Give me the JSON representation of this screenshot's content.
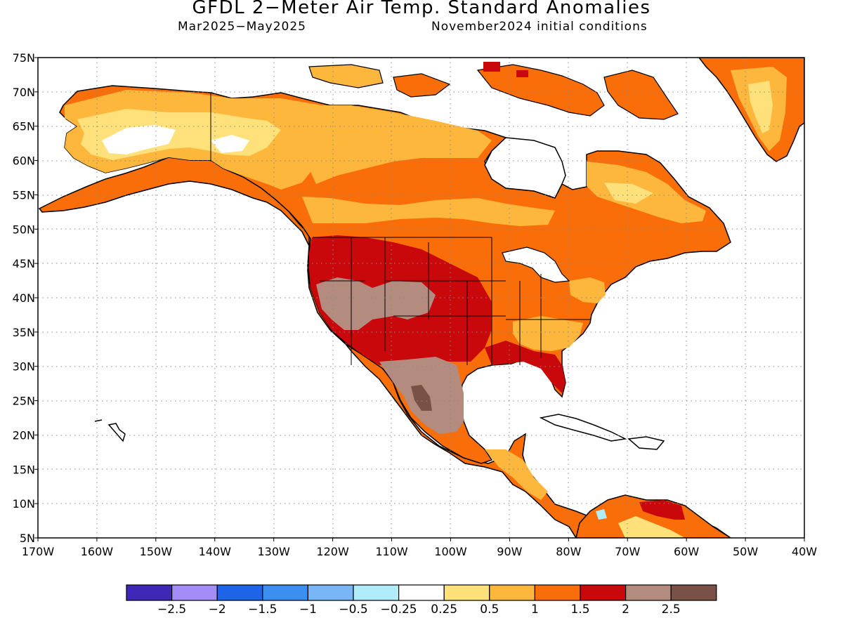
{
  "title": "GFDL 2−Meter Air Temp. Standard Anomalies",
  "subtitle_left": "Mar2025−May2025",
  "subtitle_right": "November2024 initial conditions",
  "map": {
    "lat_labels": [
      "75N",
      "70N",
      "65N",
      "60N",
      "55N",
      "50N",
      "45N",
      "40N",
      "35N",
      "30N",
      "25N",
      "20N",
      "15N",
      "10N",
      "5N"
    ],
    "lon_labels": [
      "170W",
      "160W",
      "150W",
      "140W",
      "130W",
      "120W",
      "110W",
      "100W",
      "90W",
      "80W",
      "70W",
      "60W",
      "50W",
      "40W"
    ],
    "grid": true
  },
  "colorbar": {
    "colors": [
      "#3f28b8",
      "#a28cf5",
      "#1e64e6",
      "#3c8ef0",
      "#78b6f5",
      "#b0ecfa",
      "#ffffff",
      "#fee17a",
      "#fdb73c",
      "#fa6e0a",
      "#c8080a",
      "#b48b7f",
      "#7a5147"
    ],
    "labels": [
      "−2.5",
      "−2",
      "−1.5",
      "−1",
      "−0.5",
      "−0.25",
      "0.25",
      "0.5",
      "1",
      "1.5",
      "2",
      "2.5"
    ]
  }
}
